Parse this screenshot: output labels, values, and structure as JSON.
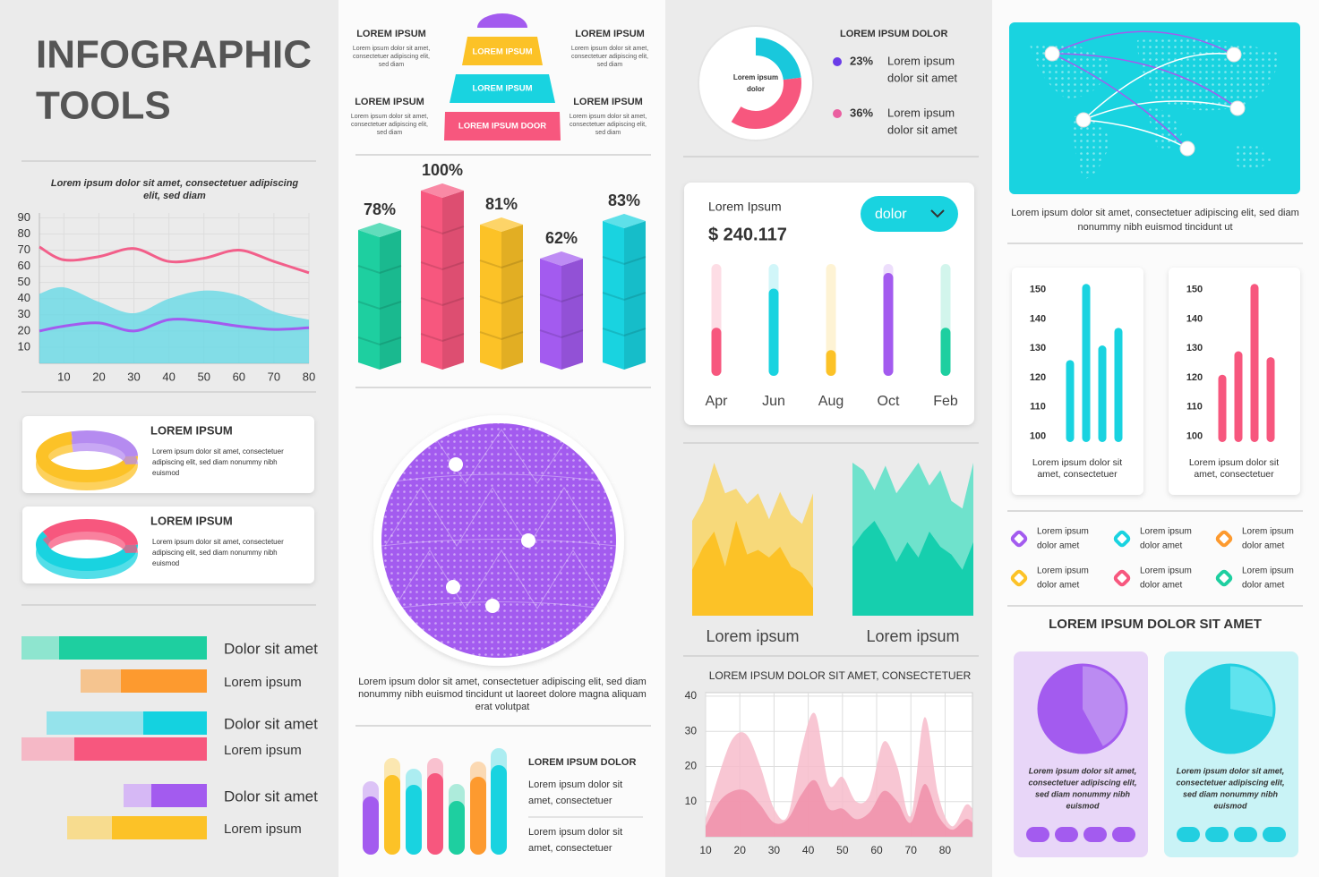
{
  "header": {
    "title": [
      "INFOGRAPHIC",
      "TOOLS"
    ]
  },
  "pyramid": {
    "items": [
      {
        "title": "LOREM IPSUM",
        "text": [
          "Lorem ipsum dolor sit amet,",
          "consectetuer adipiscing elit,",
          "sed diam"
        ]
      },
      {
        "title": "LOREM IPSUM",
        "text": [
          "Lorem ipsum dolor sit amet,",
          "consectetuer adipiscing elit,",
          "sed diam"
        ]
      },
      {
        "title": "LOREM IPSUM",
        "text": [
          "Lorem ipsum dolor sit amet,",
          "consectetuer adipiscing elit,",
          "sed diam"
        ]
      },
      {
        "title": "LOREM IPSUM",
        "text": [
          "Lorem ipsum dolor sit amet,",
          "consectetuer adipiscing elit,",
          "sed diam"
        ]
      }
    ],
    "levels": [
      "LOREM IPSUM",
      "LOREM IPSUM",
      "LOREM IPSUM DOOR"
    ]
  },
  "globe": {
    "caption": [
      "Lorem ipsum dolor sit amet, consectetuer adipiscing elit, sed diam",
      "nonummy nibh euismod tincidunt ut laoreet dolore magna aliquam",
      "erat volutpat"
    ]
  },
  "map": {
    "caption": [
      "Lorem ipsum dolor sit amet, consectetuer adipiscing elit, sed diam",
      "nonummy nibh euismod tincidunt ut"
    ]
  },
  "icon_legend": {
    "colors": [
      "#a35bef",
      "#19d3e0",
      "#fd9a2f",
      "#fcc227",
      "#f7577e",
      "#1ecfa0"
    ],
    "items": [
      [
        "Lorem ipsum",
        "dolor amet"
      ],
      [
        "Lorem ipsum",
        "dolor amet"
      ],
      [
        "Lorem ipsum",
        "dolor amet"
      ],
      [
        "Lorem ipsum",
        "dolor amet"
      ],
      [
        "Lorem ipsum",
        "dolor amet"
      ],
      [
        "Lorem ipsum",
        "dolor amet"
      ]
    ]
  },
  "pie_heading": "LOREM IPSUM DOLOR SIT AMET",
  "chart_data": [
    {
      "type": "line",
      "title": [
        "Lorem ipsum dolor sit amet, consectetuer adipiscing",
        "elit, sed diam"
      ],
      "x": [
        3,
        10,
        20,
        30,
        40,
        50,
        60,
        70,
        80
      ],
      "series": [
        {
          "color": "#5fd8e6",
          "fill": true,
          "values": [
            43,
            47,
            38,
            31,
            40,
            45,
            42,
            32,
            27
          ]
        },
        {
          "color": "#f25f8a",
          "values": [
            72,
            64,
            66,
            71,
            63,
            65,
            70,
            63,
            56
          ]
        },
        {
          "color": "#a35bef",
          "values": [
            20,
            23,
            25,
            20,
            27,
            26,
            23,
            21,
            22
          ]
        }
      ],
      "xlim": [
        3,
        80
      ],
      "ylim": [
        0,
        93
      ],
      "xticks": [
        10,
        20,
        30,
        40,
        50,
        60,
        70,
        80
      ],
      "yticks": [
        10,
        20,
        30,
        40,
        50,
        60,
        70,
        80,
        90
      ],
      "grid": true
    },
    {
      "type": "hbar",
      "categories": [
        "Dolor sit amet",
        "Lorem ipsum",
        "Dolor sit amet",
        "Lorem ipsum",
        "Dolor sit amet",
        "Lorem ipsum"
      ],
      "series": [
        {
          "colors": [
            "#1ecfa0",
            "#fd9a2f",
            "#14d2e0",
            "#f7577e",
            "#a35bef",
            "#fcc227"
          ],
          "values": [
            165,
            96,
            71,
            148,
            62,
            106
          ]
        },
        {
          "colors": [
            "#8ee5cf",
            "#f5c48f",
            "#95e3eb",
            "#f5b8c6",
            "#d6b8f5",
            "#f7dc8f"
          ],
          "values": [
            42,
            45,
            108,
            59,
            31,
            50
          ]
        }
      ],
      "xlim": [
        0,
        207
      ]
    },
    {
      "type": "cube",
      "values": [
        78,
        100,
        81,
        62,
        83
      ],
      "value_labels": [
        "78%",
        "100%",
        "81%",
        "62%",
        "83%"
      ],
      "colors": [
        "#1ecfa0",
        "#f7577e",
        "#fcc227",
        "#a35bef",
        "#19d3e0"
      ],
      "ylim": [
        0,
        100
      ]
    },
    {
      "type": "capsule",
      "title": "LOREM IPSUM DOLOR",
      "texts": [
        [
          "Lorem ipsum dolor sit",
          "amet, consectetuer"
        ],
        [
          "Lorem ipsum dolor sit",
          "amet, consectetuer"
        ]
      ],
      "values": [
        65,
        89,
        78,
        91,
        60,
        87,
        100
      ],
      "targets": [
        82,
        108,
        96,
        108,
        79,
        104,
        119
      ],
      "colors": [
        "#a35bef",
        "#fcc227",
        "#19d3e0",
        "#f7577e",
        "#1ecfa0",
        "#fd9a2f",
        "#19d3e0"
      ],
      "ylim": [
        0,
        120
      ]
    },
    {
      "type": "donut",
      "title": "LOREM IPSUM DOLOR",
      "center": [
        "Lorem ipsum",
        "dolor"
      ],
      "values": [
        23,
        36
      ],
      "value_labels": [
        "23%",
        "36%"
      ],
      "colors": [
        "#19c8dc",
        "#f7577e"
      ],
      "dot_colors": [
        "#6a3ce8",
        "#ea5fa0"
      ],
      "texts": [
        [
          "Lorem ipsum",
          "dolor sit amet"
        ],
        [
          "Lorem ipsum",
          "dolor sit amet"
        ]
      ]
    },
    {
      "type": "progress",
      "title": "Lorem Ipsum",
      "amount": "$ 240.117",
      "dropdown": "dolor",
      "categories": [
        "Apr",
        "Jun",
        "Aug",
        "Oct",
        "Feb"
      ],
      "values": [
        43,
        78,
        23,
        92,
        43
      ],
      "colors": [
        "#f7577e",
        "#19d3e0",
        "#fcc227",
        "#a35bef",
        "#1ecfa0"
      ],
      "ylim": [
        0,
        100
      ]
    },
    {
      "type": "area",
      "label": "Lorem ipsum",
      "ylim": [
        0,
        100
      ],
      "series": [
        {
          "color": "#f7d97a",
          "values": [
            62,
            75,
            100,
            80,
            83,
            73,
            80,
            63,
            81,
            66,
            60,
            80
          ]
        },
        {
          "color": "#fcc227",
          "values": [
            30,
            45,
            55,
            32,
            62,
            40,
            43,
            38,
            45,
            32,
            28,
            18
          ]
        }
      ]
    },
    {
      "type": "area",
      "label": "Lorem ipsum",
      "ylim": [
        0,
        100
      ],
      "series": [
        {
          "color": "#6fe2cc",
          "values": [
            100,
            95,
            82,
            98,
            80,
            90,
            100,
            85,
            95,
            75,
            70,
            100
          ]
        },
        {
          "color": "#16cfae",
          "values": [
            45,
            55,
            62,
            50,
            35,
            48,
            38,
            55,
            45,
            40,
            30,
            48
          ]
        }
      ]
    },
    {
      "type": "smootharea",
      "title": "LOREM IPSUM DOLOR SIT AMET, CONSECTETUER",
      "x": [
        10,
        14,
        18,
        22,
        26,
        30,
        34,
        38,
        42,
        46,
        50,
        54,
        58,
        62,
        66,
        70,
        74,
        78,
        82,
        86,
        88
      ],
      "series": [
        {
          "color": "#f7bccb",
          "values": [
            5,
            18,
            28,
            29,
            20,
            8,
            6,
            25,
            35,
            15,
            17,
            10,
            12,
            27,
            20,
            6,
            34,
            12,
            3,
            9,
            8
          ]
        },
        {
          "color": "#f08fa9",
          "values": [
            3,
            10,
            13,
            13,
            9,
            4,
            5,
            12,
            16,
            8,
            8,
            5,
            7,
            13,
            10,
            4,
            15,
            6,
            2,
            5,
            4
          ]
        }
      ],
      "xlim": [
        10,
        88
      ],
      "ylim": [
        0,
        41
      ],
      "xticks": [
        10,
        20,
        30,
        40,
        50,
        60,
        70,
        80
      ],
      "yticks": [
        10,
        20,
        30,
        40
      ],
      "grid": true
    },
    {
      "type": "bar",
      "color": "#19d3e0",
      "values": [
        126,
        152,
        131,
        137
      ],
      "ylim": [
        98,
        153
      ],
      "yticks": [
        100,
        110,
        120,
        130,
        140,
        150
      ],
      "caption": [
        "Lorem ipsum dolor sit",
        "amet, consectetuer"
      ]
    },
    {
      "type": "bar",
      "color": "#f7577e",
      "values": [
        121,
        129,
        152,
        127
      ],
      "ylim": [
        98,
        153
      ],
      "yticks": [
        100,
        110,
        120,
        130,
        140,
        150
      ],
      "caption": [
        "Lorem ipsum dolor sit",
        "amet, consectetuer"
      ]
    },
    {
      "type": "pie",
      "values": [
        42,
        58
      ],
      "colors": [
        "#bb8bf2",
        "#a35bef"
      ],
      "card": "#e8d6f8",
      "caption": [
        "Lorem ipsum dolor sit amet,",
        "consectetuer adipiscing elit,",
        "sed diam nonummy nibh",
        "euismod"
      ]
    },
    {
      "type": "pie",
      "values": [
        28,
        72
      ],
      "colors": [
        "#5fe3ee",
        "#22cfe0"
      ],
      "card": "#c9f3f6",
      "caption": [
        "Lorem ipsum dolor sit amet,",
        "consectetuer adipiscing elit,",
        "sed diam nonummy nibh",
        "euismod"
      ]
    },
    {
      "type": "ring",
      "title": "LOREM IPSUM",
      "values": [
        68,
        32
      ],
      "colors": [
        "#fcc227",
        "#b58bf0"
      ],
      "text": [
        "Lorem ipsum dolor sit amet, consectetuer",
        "adipiscing elit, sed diam nonummy nibh",
        "euismod"
      ]
    },
    {
      "type": "ring",
      "title": "LOREM IPSUM",
      "values": [
        55,
        45
      ],
      "colors": [
        "#19d3e0",
        "#f7577e"
      ],
      "text": [
        "Lorem ipsum dolor sit amet, consectetuer",
        "adipiscing elit, sed diam nonummy nibh",
        "euismod"
      ]
    }
  ]
}
